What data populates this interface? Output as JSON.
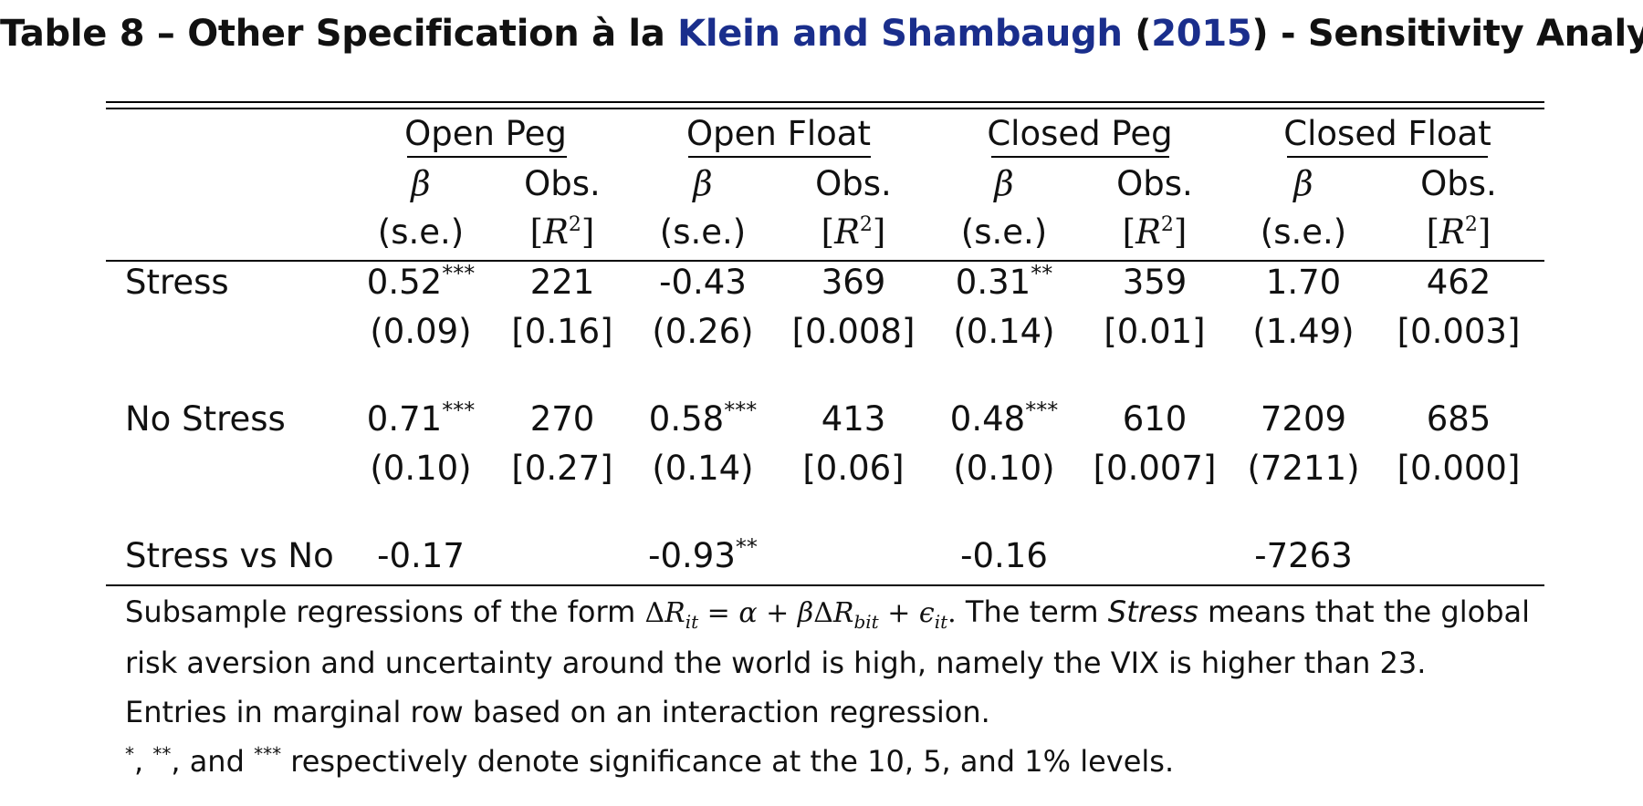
{
  "caption": {
    "prefix": "Table 8 – Other Specification à la ",
    "cite_authors": "Klein and Shambaugh",
    "cite_open": "(",
    "cite_year": "2015",
    "cite_close": ")",
    "suffix": " - Sensitivity Analysis"
  },
  "groups": [
    "Open Peg",
    "Open Float",
    "Closed Peg",
    "Closed Float"
  ],
  "subheaders": {
    "beta": "β",
    "obs": "Obs.",
    "se": "(s.e.)",
    "r2_open": "[",
    "r2_R": "R",
    "r2_exp": "2",
    "r2_close": "]"
  },
  "rows": [
    {
      "label": "Stress",
      "main": [
        {
          "v": "0.52",
          "stars": "***"
        },
        {
          "v": "221",
          "stars": ""
        },
        {
          "v": "-0.43",
          "stars": ""
        },
        {
          "v": "369",
          "stars": ""
        },
        {
          "v": "0.31",
          "stars": "**"
        },
        {
          "v": "359",
          "stars": ""
        },
        {
          "v": "1.70",
          "stars": ""
        },
        {
          "v": "462",
          "stars": ""
        }
      ],
      "sub": [
        "(0.09)",
        "[0.16]",
        "(0.26)",
        "[0.008]",
        "(0.14)",
        "[0.01]",
        "(1.49)",
        "[0.003]"
      ]
    },
    {
      "label": "No Stress",
      "main": [
        {
          "v": "0.71",
          "stars": "***"
        },
        {
          "v": "270",
          "stars": ""
        },
        {
          "v": "0.58",
          "stars": "***"
        },
        {
          "v": "413",
          "stars": ""
        },
        {
          "v": "0.48",
          "stars": "***"
        },
        {
          "v": "610",
          "stars": ""
        },
        {
          "v": "7209",
          "stars": ""
        },
        {
          "v": "685",
          "stars": ""
        }
      ],
      "sub": [
        "(0.10)",
        "[0.27]",
        "(0.14)",
        "[0.06]",
        "(0.10)",
        "[0.007]",
        "(7211)",
        "[0.000]"
      ]
    }
  ],
  "marginal": {
    "label": "Stress vs No",
    "values": [
      {
        "v": "-0.17",
        "stars": ""
      },
      {
        "v": "-0.93",
        "stars": "**"
      },
      {
        "v": "-0.16",
        "stars": ""
      },
      {
        "v": "-7263",
        "stars": ""
      }
    ]
  },
  "notes": {
    "n1_pre": "Subsample regressions of the form ",
    "eq": {
      "delta": "Δ",
      "R": "R",
      "sub_it": "it",
      "eq": " = ",
      "alpha": "α",
      "plus1": " + ",
      "beta": "β",
      "delta2": "Δ",
      "R2": "R",
      "sub_bit": "bit",
      "plus2": " + ",
      "eps": "ϵ",
      "sub_it2": "it",
      "dot": "."
    },
    "n1_mid": " The term ",
    "n1_term": "Stress",
    "n1_post": " means that the global",
    "n2": "risk aversion and uncertainty around the world is high, namely the VIX is higher than 23.",
    "n3": "Entries in marginal row based on an interaction regression.",
    "n4_s1": "*",
    "n4_t1": ", ",
    "n4_s2": "**",
    "n4_t2": ", and ",
    "n4_s3": "***",
    "n4_t3": " respectively denote significance at the 10, 5, and 1% levels."
  }
}
